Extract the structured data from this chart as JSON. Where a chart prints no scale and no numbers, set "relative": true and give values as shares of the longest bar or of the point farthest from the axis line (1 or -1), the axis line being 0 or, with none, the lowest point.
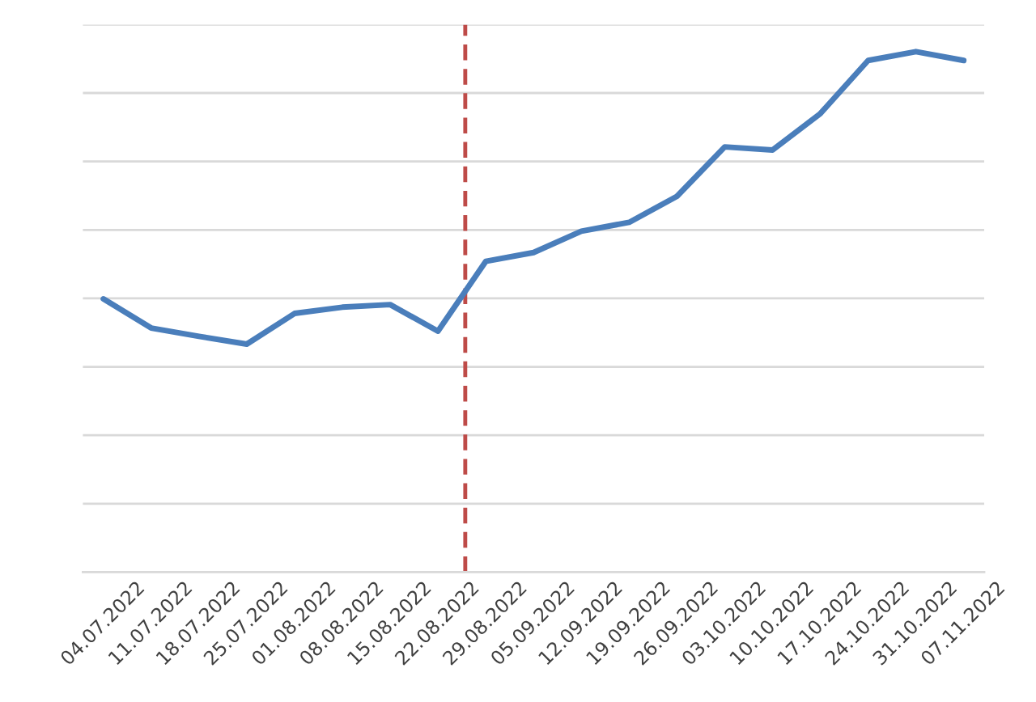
{
  "chart_data": {
    "type": "line",
    "relative": true,
    "grid": "y",
    "legend": false,
    "marker": "none",
    "line_style": "solid",
    "x": [
      "2022-07-04",
      "2022-07-11",
      "2022-07-18",
      "2022-07-25",
      "2022-08-01",
      "2022-08-08",
      "2022-08-15",
      "2022-08-22",
      "2022-08-29",
      "2022-09-05",
      "2022-09-12",
      "2022-09-19",
      "2022-09-26",
      "2022-10-03",
      "2022-10-10",
      "2022-10-17",
      "2022-10-24",
      "2022-10-31",
      "2022-11-07"
    ],
    "xlim": [
      "2022-07-01",
      "2022-11-10"
    ],
    "xticks": [
      {
        "value": "2022-07-04",
        "label": "04.07.2022"
      },
      {
        "value": "2022-07-11",
        "label": "11.07.2022"
      },
      {
        "value": "2022-07-18",
        "label": "18.07.2022"
      },
      {
        "value": "2022-07-25",
        "label": "25.07.2022"
      },
      {
        "value": "2022-08-01",
        "label": "01.08.2022"
      },
      {
        "value": "2022-08-08",
        "label": "08.08.2022"
      },
      {
        "value": "2022-08-15",
        "label": "15.08.2022"
      },
      {
        "value": "2022-08-22",
        "label": "22.08.2022"
      },
      {
        "value": "2022-08-29",
        "label": "29.08.2022"
      },
      {
        "value": "2022-09-05",
        "label": "05.09.2022"
      },
      {
        "value": "2022-09-12",
        "label": "12.09.2022"
      },
      {
        "value": "2022-09-19",
        "label": "19.09.2022"
      },
      {
        "value": "2022-09-26",
        "label": "26.09.2022"
      },
      {
        "value": "2022-10-03",
        "label": "03.10.2022"
      },
      {
        "value": "2022-10-10",
        "label": "10.10.2022"
      },
      {
        "value": "2022-10-17",
        "label": "17.10.2022"
      },
      {
        "value": "2022-10-24",
        "label": "24.10.2022"
      },
      {
        "value": "2022-10-31",
        "label": "31.10.2022"
      },
      {
        "value": "2022-11-07",
        "label": "07.11.2022"
      }
    ],
    "series": [
      {
        "color": "#4a7ebb",
        "values": [
          0.525,
          0.469,
          0.453,
          0.438,
          0.497,
          0.509,
          0.514,
          0.463,
          0.597,
          0.614,
          0.655,
          0.672,
          0.722,
          0.817,
          0.811,
          0.881,
          0.983,
          1,
          0.983
        ]
      }
    ],
    "ref_lines": [
      {
        "axis": "x",
        "value": "2022-08-26",
        "color": "#be4b48",
        "line_style": "dashed"
      }
    ]
  }
}
